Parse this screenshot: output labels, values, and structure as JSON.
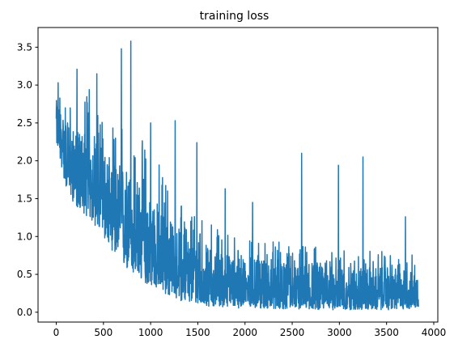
{
  "chart_data": {
    "type": "line",
    "title": "training loss",
    "xlabel": "",
    "ylabel": "",
    "xlim": [
      -193,
      4043
    ],
    "ylim": [
      -0.13,
      3.76
    ],
    "x_ticks": [
      0,
      500,
      1000,
      1500,
      2000,
      2500,
      3000,
      3500,
      4000
    ],
    "y_ticks": [
      0.0,
      0.5,
      1.0,
      1.5,
      2.0,
      2.5,
      3.0,
      3.5
    ],
    "x_tick_labels": [
      "0",
      "500",
      "1000",
      "1500",
      "2000",
      "2500",
      "3000",
      "3500",
      "4000"
    ],
    "y_tick_labels": [
      "0.0",
      "0.5",
      "1.0",
      "1.5",
      "2.0",
      "2.5",
      "3.0",
      "3.5"
    ],
    "grid": false,
    "legend": null,
    "series": [
      {
        "color": "#1f77b4",
        "x_range": [
          0,
          3840
        ],
        "n_points": 3841,
        "start_value": 2.5,
        "trend": "noisy exponential decay",
        "envelope": [
          {
            "x": 0,
            "low": 2.25,
            "mean": 2.5,
            "high": 3.05
          },
          {
            "x": 100,
            "low": 1.65,
            "mean": 2.15,
            "high": 2.85
          },
          {
            "x": 200,
            "low": 1.4,
            "mean": 1.9,
            "high": 2.75
          },
          {
            "x": 300,
            "low": 1.3,
            "mean": 1.75,
            "high": 2.95
          },
          {
            "x": 400,
            "low": 1.15,
            "mean": 1.65,
            "high": 3.0
          },
          {
            "x": 500,
            "low": 1.0,
            "mean": 1.5,
            "high": 2.75
          },
          {
            "x": 600,
            "low": 0.8,
            "mean": 1.35,
            "high": 2.45
          },
          {
            "x": 700,
            "low": 0.6,
            "mean": 1.2,
            "high": 2.6
          },
          {
            "x": 800,
            "low": 0.5,
            "mean": 1.05,
            "high": 2.5
          },
          {
            "x": 900,
            "low": 0.4,
            "mean": 0.95,
            "high": 2.3
          },
          {
            "x": 1000,
            "low": 0.35,
            "mean": 0.85,
            "high": 2.2
          },
          {
            "x": 1200,
            "low": 0.2,
            "mean": 0.65,
            "high": 1.7
          },
          {
            "x": 1400,
            "low": 0.12,
            "mean": 0.5,
            "high": 1.4
          },
          {
            "x": 1600,
            "low": 0.08,
            "mean": 0.42,
            "high": 1.2
          },
          {
            "x": 2000,
            "low": 0.05,
            "mean": 0.35,
            "high": 1.0
          },
          {
            "x": 2500,
            "low": 0.04,
            "mean": 0.3,
            "high": 0.9
          },
          {
            "x": 3000,
            "low": 0.03,
            "mean": 0.28,
            "high": 0.85
          },
          {
            "x": 3500,
            "low": 0.03,
            "mean": 0.27,
            "high": 0.85
          },
          {
            "x": 3840,
            "low": 0.05,
            "mean": 0.26,
            "high": 0.75
          }
        ],
        "spikes": [
          {
            "x": 20,
            "y": 3.03
          },
          {
            "x": 220,
            "y": 3.21
          },
          {
            "x": 350,
            "y": 2.94
          },
          {
            "x": 430,
            "y": 3.15
          },
          {
            "x": 690,
            "y": 3.48
          },
          {
            "x": 790,
            "y": 3.58
          },
          {
            "x": 1000,
            "y": 2.5
          },
          {
            "x": 1260,
            "y": 2.53
          },
          {
            "x": 1490,
            "y": 2.24
          },
          {
            "x": 1790,
            "y": 1.63
          },
          {
            "x": 2080,
            "y": 1.45
          },
          {
            "x": 2600,
            "y": 2.1
          },
          {
            "x": 2990,
            "y": 1.94
          },
          {
            "x": 3250,
            "y": 2.05
          },
          {
            "x": 3700,
            "y": 1.26
          }
        ]
      }
    ]
  }
}
